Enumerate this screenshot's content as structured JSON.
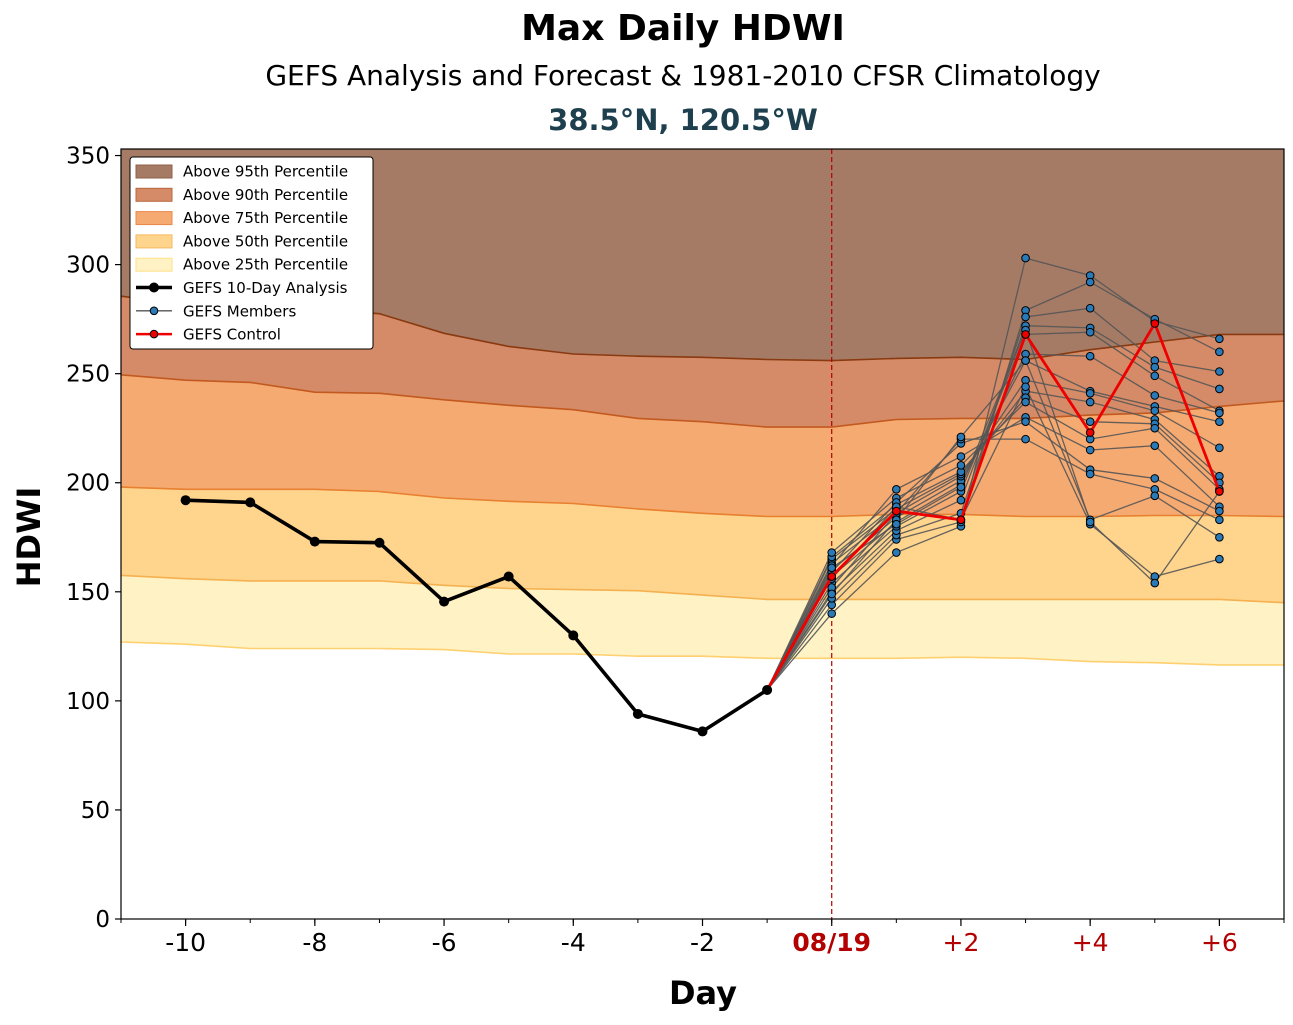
{
  "chart_data": {
    "type": "line",
    "title": "Max Daily HDWI",
    "subtitle": "GEFS Analysis and Forecast & 1981-2010 CFSR Climatology",
    "location": "38.5°N, 120.5°W",
    "xlabel": "Day",
    "ylabel": "HDWI",
    "xlim": [
      -11,
      7
    ],
    "ylim": [
      0,
      353
    ],
    "x_ticks": [
      {
        "x": -10,
        "label": "-10",
        "color": "#000000",
        "bold": false
      },
      {
        "x": -8,
        "label": "-8",
        "color": "#000000",
        "bold": false
      },
      {
        "x": -6,
        "label": "-6",
        "color": "#000000",
        "bold": false
      },
      {
        "x": -4,
        "label": "-4",
        "color": "#000000",
        "bold": false
      },
      {
        "x": -2,
        "label": "-2",
        "color": "#000000",
        "bold": false
      },
      {
        "x": 0,
        "label": "08/19",
        "color": "#b30000",
        "bold": true
      },
      {
        "x": 2,
        "label": "+2",
        "color": "#b30000",
        "bold": false
      },
      {
        "x": 4,
        "label": "+4",
        "color": "#b30000",
        "bold": false
      },
      {
        "x": 6,
        "label": "+6",
        "color": "#b30000",
        "bold": false
      }
    ],
    "y_ticks": [
      0,
      50,
      100,
      150,
      200,
      250,
      300,
      350
    ],
    "x_minor_step": 1,
    "grid": false,
    "legend_position": "top-left",
    "legend": [
      {
        "label": "Above 95th Percentile",
        "kind": "patch",
        "color": "#a67b66",
        "edge": "#8f5f48"
      },
      {
        "label": "Above 90th Percentile",
        "kind": "patch",
        "color": "#d58b67",
        "edge": "#b8683e"
      },
      {
        "label": "Above 75th Percentile",
        "kind": "patch",
        "color": "#f5aa72",
        "edge": "#e8884a"
      },
      {
        "label": "Above 50th Percentile",
        "kind": "patch",
        "color": "#ffd58e",
        "edge": "#f5b860"
      },
      {
        "label": "Above 25th Percentile",
        "kind": "patch",
        "color": "#fff2c4",
        "edge": "#ffe08a"
      },
      {
        "label": "GEFS 10-Day Analysis",
        "kind": "line",
        "color": "#000000",
        "marker": "#000000"
      },
      {
        "label": "GEFS Members",
        "kind": "line",
        "color": "#555555",
        "marker": "#2a7ab8"
      },
      {
        "label": "GEFS Control",
        "kind": "line",
        "color": "#ee0000",
        "marker": "#ee0000"
      }
    ],
    "forecast_line_x": 0,
    "percentile_x": [
      -11,
      -10,
      -9,
      -8,
      -7,
      -6,
      -5,
      -4,
      -3,
      -2,
      -1,
      0,
      1,
      2,
      3,
      4,
      5,
      6,
      7
    ],
    "percentiles": [
      {
        "name": "Above 25th Percentile",
        "fill": "#fff2c4",
        "stroke": "#ffd070",
        "values": [
          127,
          126,
          124,
          124,
          124,
          123.5,
          121.5,
          121.5,
          120.5,
          120.5,
          119.5,
          119.5,
          119.5,
          120,
          119.5,
          118,
          117.5,
          116.5,
          116.5
        ]
      },
      {
        "name": "Above 50th Percentile",
        "fill": "#ffd58e",
        "stroke": "#f5b050",
        "values": [
          157.5,
          156,
          155,
          155,
          155,
          153,
          151.5,
          151,
          150.5,
          148.5,
          146.5,
          146.5,
          146.5,
          146.5,
          146.5,
          146.5,
          146.5,
          146.5,
          145
        ]
      },
      {
        "name": "Above 75th Percentile",
        "fill": "#f5aa72",
        "stroke": "#e88030",
        "values": [
          198,
          197,
          197,
          197,
          196,
          193,
          191.5,
          190.5,
          188,
          186,
          184.5,
          184.5,
          185.5,
          185.5,
          184.5,
          184.5,
          185,
          185,
          184.5
        ]
      },
      {
        "name": "Above 90th Percentile",
        "fill": "#d58b67",
        "stroke": "#c25a20",
        "values": [
          249.5,
          247,
          246,
          241.5,
          241,
          238,
          235.5,
          233.5,
          229.5,
          228,
          225.5,
          225.5,
          229,
          229.5,
          229.5,
          231,
          232,
          235,
          237.5
        ]
      },
      {
        "name": "Above 95th Percentile",
        "fill": "#a67b66",
        "stroke": "#8a3a10",
        "values": [
          285.5,
          282,
          280,
          279.5,
          277.5,
          268.5,
          262.5,
          259,
          258,
          257.5,
          256.5,
          256,
          257,
          257.5,
          256.5,
          261,
          264.5,
          268,
          268
        ]
      }
    ],
    "analysis": {
      "name": "GEFS 10-Day Analysis",
      "x": [
        -10,
        -9,
        -8,
        -7,
        -6,
        -5,
        -4,
        -3,
        -2,
        -1
      ],
      "y": [
        192,
        191,
        173,
        172.5,
        145.5,
        157,
        130,
        94,
        86,
        105
      ]
    },
    "members_x": [
      -1,
      0,
      1,
      2,
      3,
      4,
      5,
      6
    ],
    "members": [
      [
        105,
        140,
        168,
        180,
        303,
        295,
        274,
        266
      ],
      [
        105,
        144,
        174,
        182,
        279,
        292,
        275,
        260
      ],
      [
        105,
        147,
        176,
        186,
        276,
        280,
        256,
        251
      ],
      [
        105,
        150,
        178,
        192,
        272,
        271,
        253,
        243
      ],
      [
        105,
        154,
        180,
        196,
        268,
        269,
        249,
        233
      ],
      [
        105,
        157,
        182,
        199,
        259,
        258,
        240,
        232
      ],
      [
        105,
        160,
        184,
        201,
        256,
        242,
        235,
        228
      ],
      [
        105,
        163,
        186,
        203,
        247,
        241,
        233,
        216
      ],
      [
        105,
        165,
        188,
        204,
        242,
        237,
        229,
        203
      ],
      [
        105,
        166,
        190,
        205,
        239,
        228,
        227,
        200
      ],
      [
        105,
        168,
        193,
        208,
        237,
        220,
        225,
        197
      ],
      [
        105,
        162,
        197,
        212,
        230,
        215,
        217,
        189
      ],
      [
        105,
        159,
        191,
        218,
        228,
        206,
        202,
        187
      ],
      [
        105,
        152,
        186,
        220,
        220,
        204,
        197,
        183
      ],
      [
        105,
        149,
        183,
        221,
        256,
        183,
        194,
        175
      ],
      [
        105,
        156,
        189,
        183,
        244,
        181,
        157,
        165
      ],
      [
        105,
        161,
        181,
        198,
        270,
        182,
        154,
        196
      ]
    ],
    "control": {
      "name": "GEFS Control",
      "x": [
        -1,
        0,
        1,
        2,
        3,
        4,
        5,
        6
      ],
      "y": [
        105,
        157,
        187,
        183,
        268,
        223,
        273,
        196
      ]
    },
    "colors": {
      "analysis": "#000000",
      "member_line": "#555555",
      "member_marker": "#2a7ab8",
      "control": "#ee0000",
      "forecast_line": "#b30000",
      "title": "#000000",
      "location": "#1e3f4e"
    }
  }
}
